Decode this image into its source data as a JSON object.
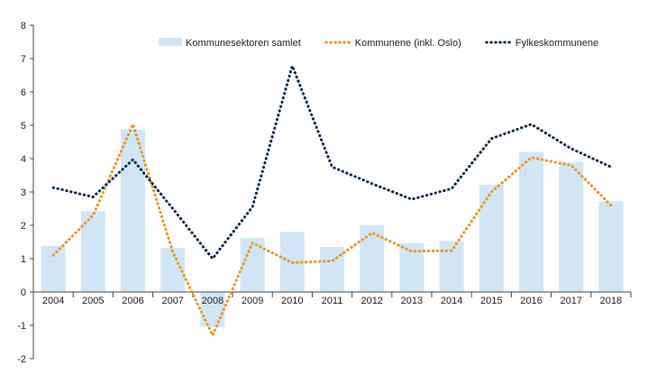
{
  "chart_data": {
    "type": "bar",
    "categories": [
      "2004",
      "2005",
      "2006",
      "2007",
      "2008",
      "2009",
      "2010",
      "2011",
      "2012",
      "2013",
      "2014",
      "2015",
      "2016",
      "2017",
      "2018"
    ],
    "ylim": [
      -2,
      8
    ],
    "yticks": [
      -2,
      -1,
      0,
      1,
      2,
      3,
      4,
      5,
      6,
      7,
      8
    ],
    "grid": false,
    "legend_placement": "top-right",
    "series": [
      {
        "name": "Kommunesektoren samlet",
        "type": "bar",
        "color": "#d0e6f6",
        "values": [
          1.38,
          2.42,
          4.87,
          1.32,
          -1.05,
          1.62,
          1.8,
          1.35,
          2.0,
          1.47,
          1.53,
          3.22,
          4.2,
          3.9,
          2.72
        ]
      },
      {
        "name": "Kommunene (inkl. Oslo)",
        "type": "line",
        "style": "dotted",
        "color": "#e8961e",
        "values": [
          1.1,
          2.3,
          5.03,
          1.2,
          -1.3,
          1.47,
          0.88,
          0.93,
          1.77,
          1.22,
          1.24,
          3.0,
          4.03,
          3.8,
          2.6
        ]
      },
      {
        "name": "Fylkeskommunene",
        "type": "line",
        "style": "dotted",
        "color": "#0d2c4f",
        "values": [
          3.13,
          2.85,
          3.97,
          2.5,
          1.0,
          2.55,
          6.78,
          3.75,
          3.25,
          2.78,
          3.1,
          4.6,
          5.03,
          4.3,
          3.75
        ]
      }
    ]
  }
}
